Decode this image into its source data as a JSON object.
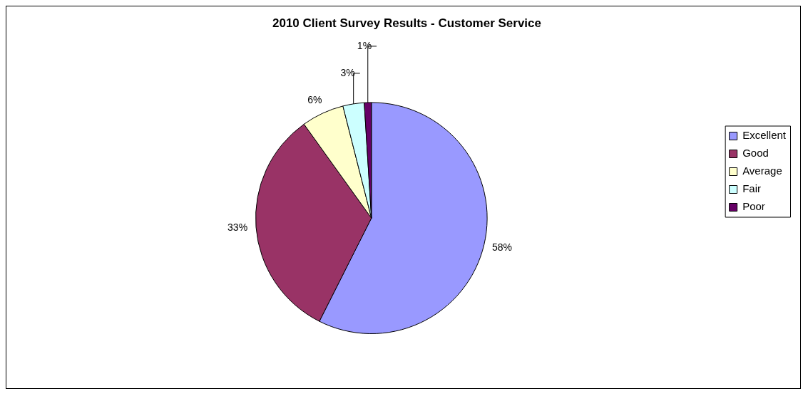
{
  "chart_data": {
    "type": "pie",
    "title": "2010 Client Survey Results - Customer Service",
    "categories": [
      "Excellent",
      "Good",
      "Average",
      "Fair",
      "Poor"
    ],
    "values": [
      58,
      33,
      6,
      3,
      1
    ],
    "colors": [
      "#9999ff",
      "#993366",
      "#ffffcc",
      "#ccffff",
      "#660066"
    ],
    "value_labels": [
      "58%",
      "33%",
      "6%",
      "3%",
      "1%"
    ],
    "legend": "right"
  }
}
